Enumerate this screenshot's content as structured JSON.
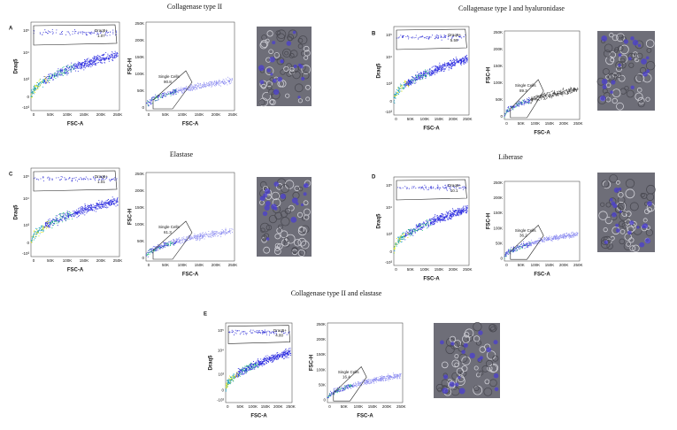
{
  "panels": [
    {
      "letter": "A",
      "title": "Collagenase type II",
      "dot_plot": {
        "y_label": "Draq5",
        "x_label": "FSC-A",
        "gate_name": "Draq5+",
        "gate_value": "1.07"
      },
      "fsc_plot": {
        "y_label": "FSC-H",
        "x_label": "FSC-A",
        "gate_name": "Single Cells",
        "gate_value": "90.8"
      }
    },
    {
      "letter": "B",
      "title": "Collagenase type I and hyaluronidase",
      "dot_plot": {
        "y_label": "Draq5",
        "x_label": "FSC-A",
        "gate_name": "Draq5+",
        "gate_value": "5.59"
      },
      "fsc_plot": {
        "y_label": "FSC-H",
        "x_label": "FSC-A",
        "gate_name": "Single Cells",
        "gate_value": "89.3"
      }
    },
    {
      "letter": "C",
      "title": "Elastase",
      "dot_plot": {
        "y_label": "Draq5",
        "x_label": "FSC-A",
        "gate_name": "Draq5+",
        "gate_value": "1.01"
      },
      "fsc_plot": {
        "y_label": "FSC-H",
        "x_label": "FSC-A",
        "gate_name": "Single Cells",
        "gate_value": "61.3"
      }
    },
    {
      "letter": "D",
      "title": "Liberase",
      "dot_plot": {
        "y_label": "Draq5",
        "x_label": "FSC-A",
        "gate_name": "Draq5+",
        "gate_value": "10.1"
      },
      "fsc_plot": {
        "y_label": "FSC-H",
        "x_label": "FSC-A",
        "gate_name": "Single Cells",
        "gate_value": "36.2"
      }
    },
    {
      "letter": "E",
      "title": "Collagenase type II and elastase",
      "dot_plot": {
        "y_label": "Draq5",
        "x_label": "FSC-A",
        "gate_name": "Draq5+",
        "gate_value": "4.80"
      },
      "fsc_plot": {
        "y_label": "FSC-H",
        "x_label": "FSC-A",
        "gate_name": "Single Cells",
        "gate_value": "16.4"
      }
    }
  ],
  "fsc_ticks": [
    "0",
    "50K",
    "100K",
    "150K",
    "200K",
    "250K"
  ],
  "draq5_ticks": [
    "10⁵",
    "10⁴",
    "10³",
    "0",
    "-10³"
  ]
}
